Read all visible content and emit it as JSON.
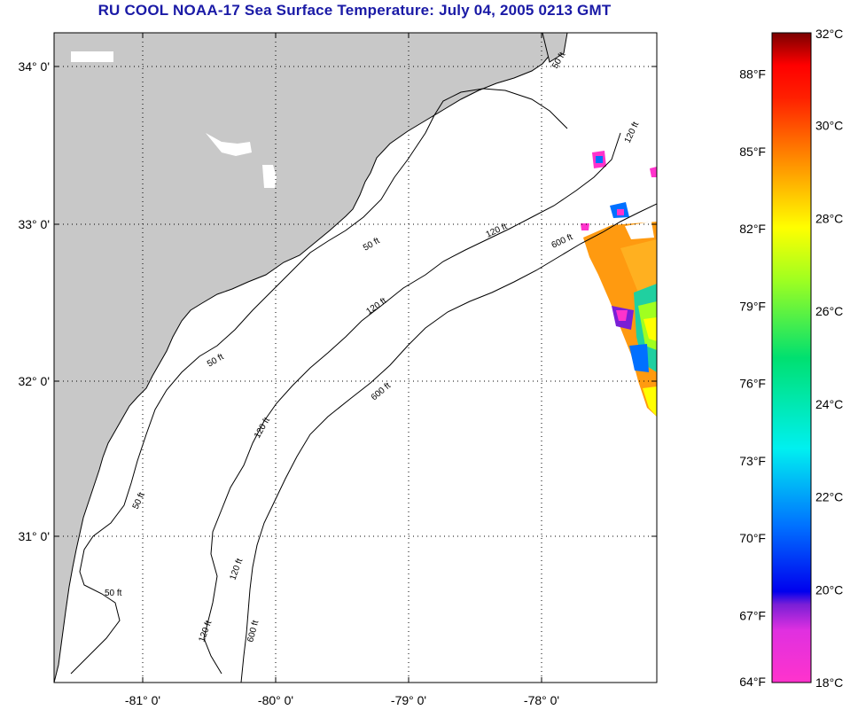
{
  "title": "RU COOL  NOAA-17  Sea Surface Temperature:  July 04, 2005 0213 GMT",
  "map": {
    "lat_labels": [
      "34° 0'",
      "33° 0'",
      "32° 0'",
      "31° 0'"
    ],
    "lon_labels": [
      "-81° 0'",
      "-80° 0'",
      "-79° 0'",
      "-78° 0'"
    ],
    "contour_labels": [
      {
        "text": "50 ft",
        "depth_ft": 50
      },
      {
        "text": "120 ft",
        "depth_ft": 120
      },
      {
        "text": "600 ft",
        "depth_ft": 600
      }
    ],
    "colors": {
      "land": "#c8c8c8",
      "ocean": "#ffffff",
      "grid": "#000000"
    }
  },
  "colorbar": {
    "celsius_labels": [
      "32°C",
      "30°C",
      "28°C",
      "26°C",
      "24°C",
      "22°C",
      "20°C",
      "18°C"
    ],
    "fahrenheit_labels": [
      "88°F",
      "85°F",
      "82°F",
      "79°F",
      "76°F",
      "73°F",
      "70°F",
      "67°F",
      "64°F"
    ],
    "min_c": 18,
    "max_c": 32,
    "gradient_colors": [
      "#ff33cc",
      "#7a1fd6",
      "#0000ee",
      "#0070ff",
      "#00f0f0",
      "#00e070",
      "#a0ff20",
      "#ffff00",
      "#ff9000",
      "#ff2000",
      "#ff0000",
      "#7a0000"
    ]
  }
}
